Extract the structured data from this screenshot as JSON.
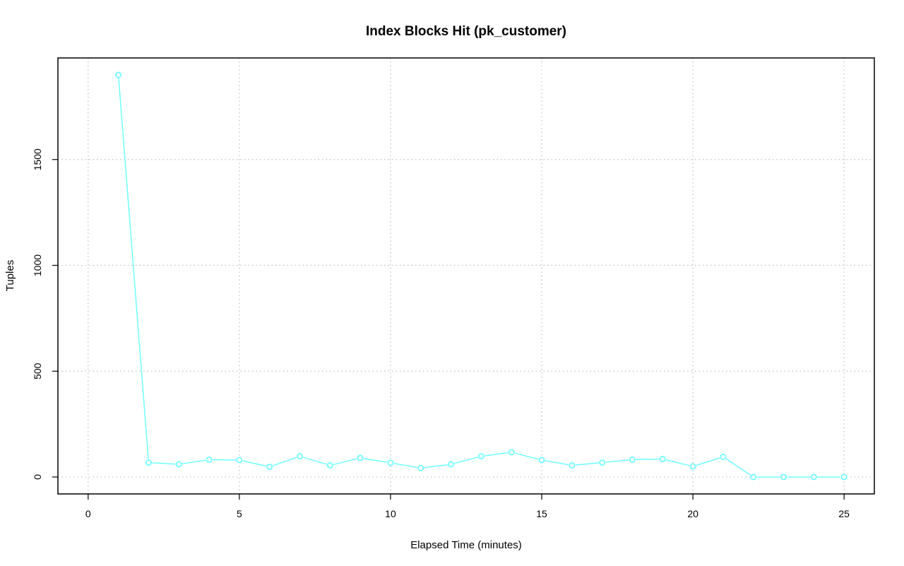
{
  "chart_data": {
    "type": "line",
    "title": "Index Blocks Hit (pk_customer)",
    "xlabel": "Elapsed Time (minutes)",
    "ylabel": "Tuples",
    "xlim": [
      -1,
      26
    ],
    "ylim": [
      -80,
      1980
    ],
    "xticks": [
      0,
      5,
      10,
      15,
      20,
      25
    ],
    "yticks": [
      0,
      500,
      1000,
      1500
    ],
    "grid": true,
    "legend": "none",
    "series": [
      {
        "color": "#66ffff",
        "marker": "open-circle",
        "x": [
          1,
          2,
          3,
          4,
          5,
          6,
          7,
          8,
          9,
          10,
          11,
          12,
          13,
          14,
          15,
          16,
          17,
          18,
          19,
          20,
          21,
          22,
          23,
          24,
          25
        ],
        "y": [
          1900,
          68,
          60,
          82,
          80,
          48,
          98,
          55,
          90,
          67,
          42,
          60,
          98,
          117,
          80,
          55,
          68,
          82,
          85,
          50,
          95,
          0,
          0,
          0,
          0
        ]
      }
    ]
  }
}
